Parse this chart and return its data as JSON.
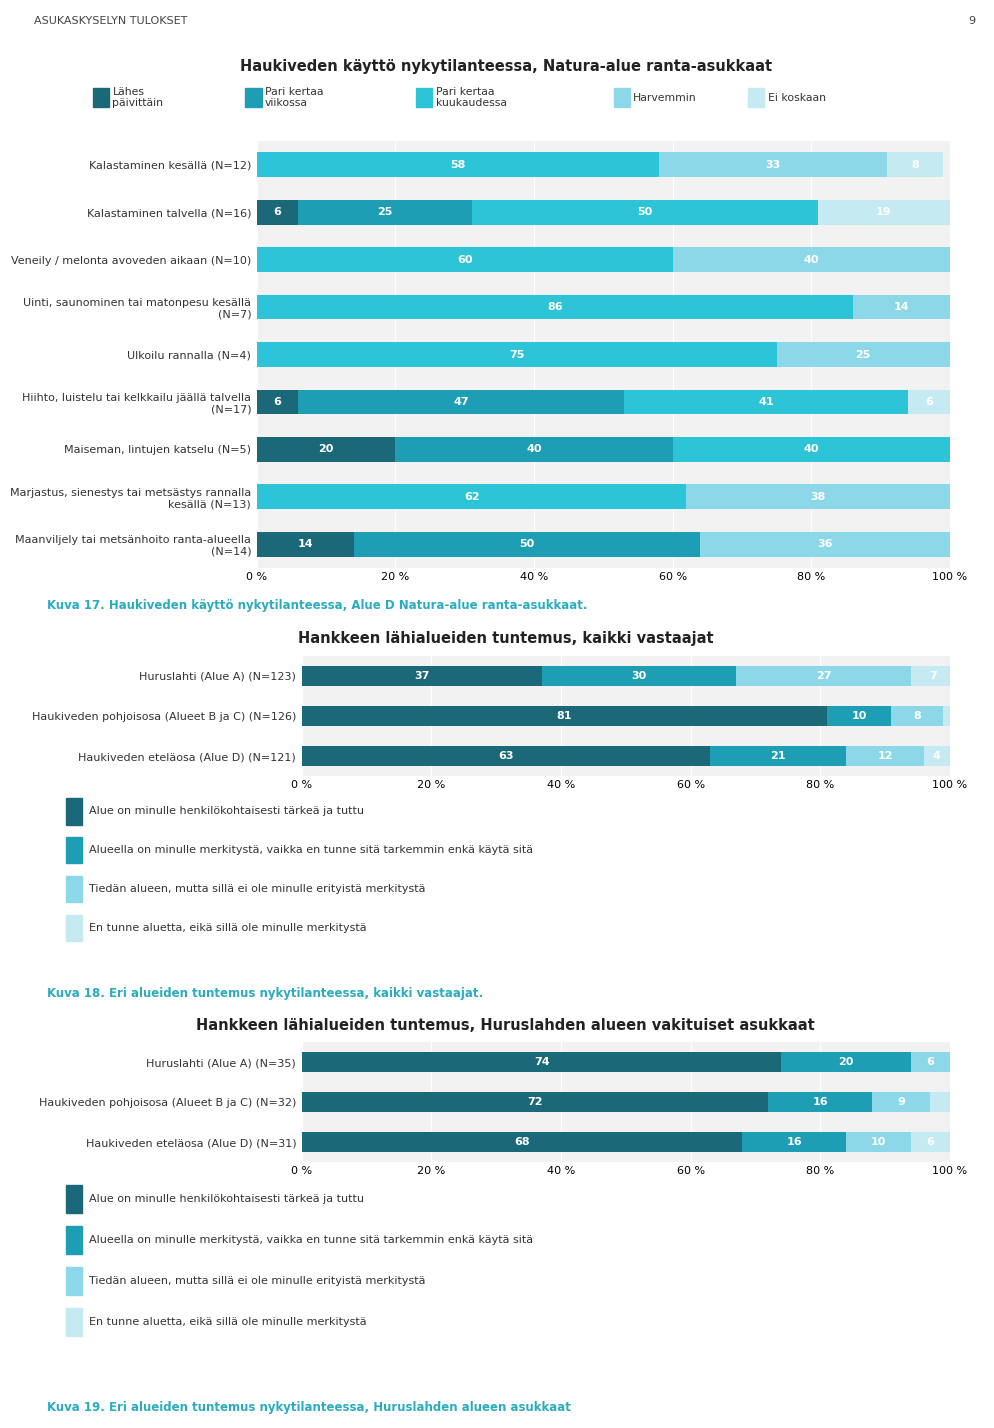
{
  "page_label": "ASUKASKYSELYN TULOKSET",
  "page_number": "9",
  "chart1": {
    "title": "Haukiveden käyttö nykytilanteessa, Natura-alue ranta-asukkaat",
    "legend_labels": [
      "Lähes\npäivittäin",
      "Pari kertaa\nviikossa",
      "Pari kertaa\nkuukaudessa",
      "Harvemmin",
      "Ei koskaan"
    ],
    "colors": [
      "#1b6878",
      "#1e9eb4",
      "#2ec4d8",
      "#8dd8e8",
      "#c5eaf2"
    ],
    "categories": [
      "Kalastaminen kesällä (N=12)",
      "Kalastaminen talvella (N=16)",
      "Veneily / melonta avoveden aikaan (N=10)",
      "Uinti, saunominen tai matonpesu kesällä\n(N=7)",
      "Ulkoilu rannalla (N=4)",
      "Hiihto, luistelu tai kelkkailu jäällä talvella\n(N=17)",
      "Maiseman, lintujen katselu (N=5)",
      "Marjastus, sienestys tai metsästys rannalla\nkesällä (N=13)",
      "Maanviljely tai metsänhoito ranta-alueella\n(N=14)"
    ],
    "data": [
      [
        0,
        0,
        58,
        33,
        8
      ],
      [
        6,
        25,
        50,
        0,
        19
      ],
      [
        0,
        0,
        60,
        40,
        0
      ],
      [
        0,
        0,
        86,
        14,
        0
      ],
      [
        0,
        0,
        75,
        25,
        0
      ],
      [
        6,
        47,
        41,
        0,
        6
      ],
      [
        20,
        40,
        40,
        0,
        0
      ],
      [
        0,
        0,
        62,
        38,
        0
      ],
      [
        14,
        50,
        0,
        36,
        0
      ]
    ],
    "label_data": [
      [
        null,
        null,
        58,
        33,
        8
      ],
      [
        6,
        25,
        50,
        null,
        19
      ],
      [
        null,
        null,
        60,
        40,
        null
      ],
      [
        null,
        null,
        86,
        14,
        null
      ],
      [
        null,
        null,
        75,
        25,
        null
      ],
      [
        6,
        47,
        41,
        null,
        6
      ],
      [
        20,
        40,
        40,
        null,
        null
      ],
      [
        null,
        null,
        62,
        38,
        null
      ],
      [
        14,
        50,
        null,
        36,
        null
      ]
    ]
  },
  "chart2": {
    "title": "Hankkeen lähialueiden tuntemus, kaikki vastaajat",
    "legend_labels": [
      "Alue on minulle henkilökohtaisesti tärkeä ja tuttu",
      "Alueella on minulle merkitystä, vaikka en tunne sitä tarkemmin enkä käytä sitä",
      "Tiedän alueen, mutta sillä ei ole minulle erityistä merkitystä",
      "En tunne aluetta, eikä sillä ole minulle merkitystä"
    ],
    "colors": [
      "#1b6878",
      "#1e9eb4",
      "#8dd8e8",
      "#c5eaf2"
    ],
    "categories": [
      "Huruslahti (Alue A) (N=123)",
      "Haukiveden pohjoisosa (Alueet B ja C) (N=126)",
      "Haukiveden eteläosa (Alue D) (N=121)"
    ],
    "data": [
      [
        37,
        30,
        27,
        7
      ],
      [
        81,
        10,
        8,
        2
      ],
      [
        63,
        21,
        12,
        4
      ]
    ],
    "label_data": [
      [
        37,
        30,
        27,
        7
      ],
      [
        81,
        10,
        8,
        2
      ],
      [
        63,
        21,
        12,
        4
      ]
    ],
    "caption": "Kuva 18. Eri alueiden tuntemus nykytilanteessa, kaikki vastaajat."
  },
  "chart3": {
    "title": "Hankkeen lähialueiden tuntemus, Huruslahden alueen vakituiset asukkaat",
    "legend_labels": [
      "Alue on minulle henkilökohtaisesti tärkeä ja tuttu",
      "Alueella on minulle merkitystä, vaikka en tunne sitä tarkemmin enkä käytä sitä",
      "Tiedän alueen, mutta sillä ei ole minulle erityistä merkitystä",
      "En tunne aluetta, eikä sillä ole minulle merkitystä"
    ],
    "colors": [
      "#1b6878",
      "#1e9eb4",
      "#8dd8e8",
      "#c5eaf2"
    ],
    "categories": [
      "Huruslahti (Alue A) (N=35)",
      "Haukiveden pohjoisosa (Alueet B ja C) (N=32)",
      "Haukiveden eteläosa (Alue D) (N=31)"
    ],
    "data": [
      [
        74,
        20,
        6,
        0
      ],
      [
        72,
        16,
        9,
        3
      ],
      [
        68,
        16,
        10,
        6
      ]
    ],
    "label_data": [
      [
        74,
        20,
        6,
        null
      ],
      [
        72,
        16,
        9,
        3
      ],
      [
        68,
        16,
        10,
        6
      ]
    ],
    "caption": "Kuva 19. Eri alueiden tuntemus nykytilanteessa, Huruslahden alueen asukkaat"
  },
  "caption1": "Kuva 17. Haukiveden käyttö nykytilanteessa, Alue D Natura-alue ranta-asukkaat.",
  "background_color": "#ffffff",
  "text_color": "#333333",
  "caption_color": "#2aacbf"
}
